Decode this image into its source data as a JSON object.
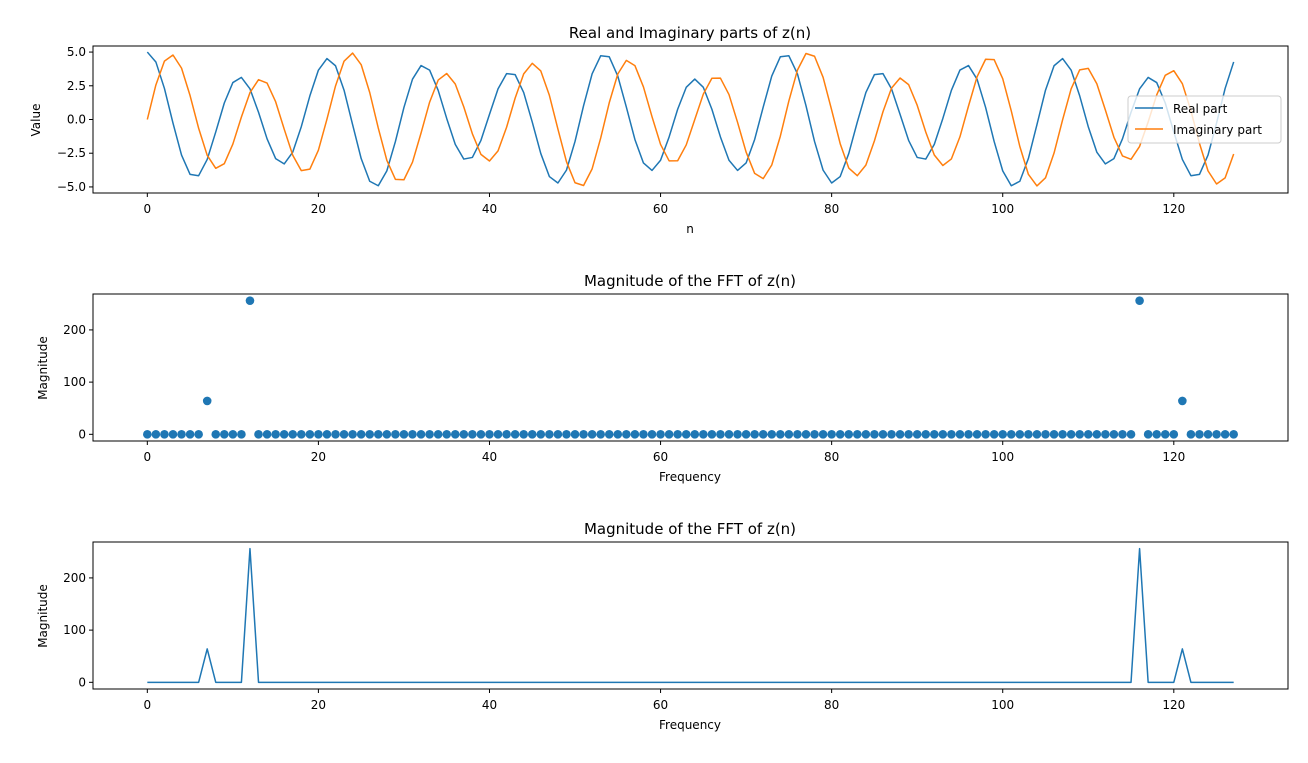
{
  "colors": {
    "real": "#1f77b4",
    "imag": "#ff7f0e",
    "axis": "#000000"
  },
  "chart_data": [
    {
      "type": "line",
      "title": "Real and Imaginary parts of z(n)",
      "xlabel": "n",
      "ylabel": "Value",
      "xlim": [
        -6.35,
        133.35
      ],
      "ylim": [
        -5.45,
        5.45
      ],
      "xticks": [
        0,
        20,
        40,
        60,
        80,
        100,
        120
      ],
      "yticks": [
        -5.0,
        -2.5,
        0.0,
        2.5,
        5.0
      ],
      "ytick_labels": [
        "−5.0",
        "−2.5",
        "0.0",
        "2.5",
        "5.0"
      ],
      "legend": {
        "placement": "right",
        "entries": [
          "Real part",
          "Imaginary part"
        ]
      },
      "grid": false,
      "series": [
        {
          "name": "Real part",
          "color": "#1f77b4",
          "formula": "4*cos(2*pi*12*n/128) + cos(2*pi*7*n/128)",
          "n_points": 128
        },
        {
          "name": "Imaginary part",
          "color": "#ff7f0e",
          "formula": "4*sin(2*pi*12*n/128) + sin(2*pi*7*n/128)",
          "n_points": 128
        }
      ]
    },
    {
      "type": "scatter",
      "title": "Magnitude of the FFT of z(n)",
      "xlabel": "Frequency",
      "ylabel": "Magnitude",
      "xlim": [
        -6.35,
        133.35
      ],
      "ylim": [
        -12.8,
        268.8
      ],
      "xticks": [
        0,
        20,
        40,
        60,
        80,
        100,
        120
      ],
      "yticks": [
        0,
        100,
        200
      ],
      "grid": false,
      "n_points": 128,
      "baseline": 0,
      "peaks": [
        {
          "x": 7,
          "y": 64
        },
        {
          "x": 12,
          "y": 256
        },
        {
          "x": 116,
          "y": 256
        },
        {
          "x": 121,
          "y": 64
        }
      ]
    },
    {
      "type": "line",
      "title": "Magnitude of the FFT of z(n)",
      "xlabel": "Frequency",
      "ylabel": "Magnitude",
      "xlim": [
        -6.35,
        133.35
      ],
      "ylim": [
        -12.8,
        268.8
      ],
      "xticks": [
        0,
        20,
        40,
        60,
        80,
        100,
        120
      ],
      "yticks": [
        0,
        100,
        200
      ],
      "grid": false,
      "n_points": 128,
      "baseline": 0,
      "peaks": [
        {
          "x": 7,
          "y": 64
        },
        {
          "x": 12,
          "y": 256
        },
        {
          "x": 116,
          "y": 256
        },
        {
          "x": 121,
          "y": 64
        }
      ]
    }
  ]
}
